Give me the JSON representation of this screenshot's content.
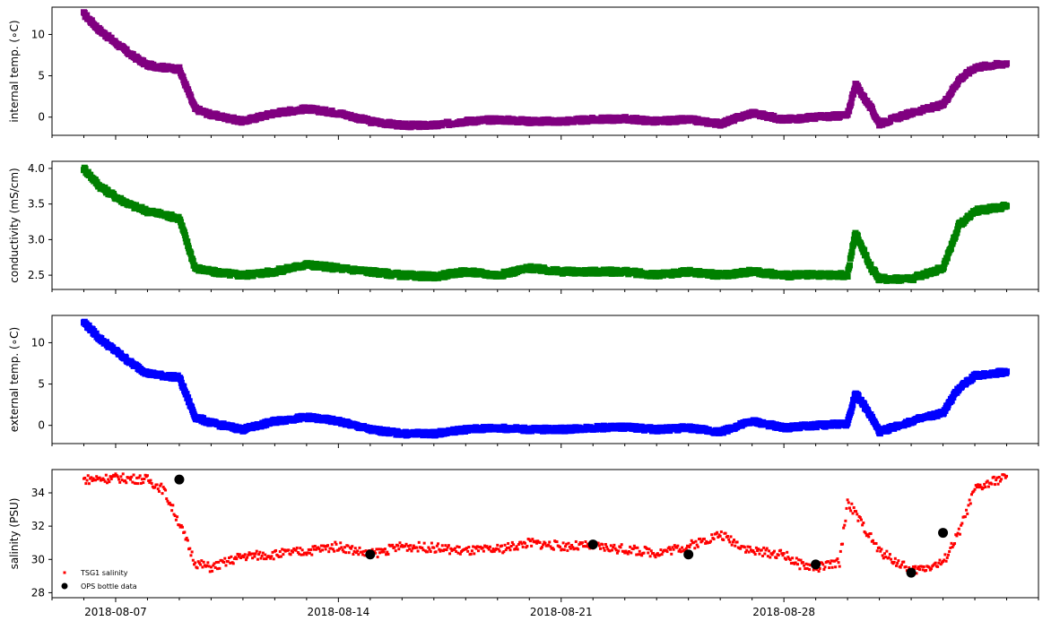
{
  "chart_data": [
    {
      "type": "scatter",
      "ylabel": "internal temp. (∘C)",
      "ylim": [
        -2.2,
        13.3
      ],
      "yticks": [
        0,
        5,
        10
      ],
      "ytick_labels": [
        "0",
        "5",
        "10"
      ],
      "series": [
        {
          "color": "#800080",
          "x": [
            "2018-08-06",
            "2018-08-06T12",
            "2018-08-07",
            "2018-08-07T12",
            "2018-08-08",
            "2018-08-08T12",
            "2018-08-09",
            "2018-08-09T12",
            "2018-08-10",
            "2018-08-11",
            "2018-08-12",
            "2018-08-13",
            "2018-08-14",
            "2018-08-15",
            "2018-08-16",
            "2018-08-17",
            "2018-08-18",
            "2018-08-19",
            "2018-08-20",
            "2018-08-21",
            "2018-08-22",
            "2018-08-23",
            "2018-08-24",
            "2018-08-25",
            "2018-08-26",
            "2018-08-27",
            "2018-08-28",
            "2018-08-29",
            "2018-08-30",
            "2018-08-30T06",
            "2018-08-30T18",
            "2018-08-31",
            "2018-09-01",
            "2018-09-02",
            "2018-09-02T12",
            "2018-09-03",
            "2018-09-04"
          ],
          "values": [
            12.5,
            10.5,
            9,
            7.5,
            6.3,
            6,
            5.8,
            1,
            0.3,
            -0.5,
            0.5,
            1,
            0.5,
            -0.5,
            -1,
            -1,
            -0.5,
            -0.3,
            -0.5,
            -0.5,
            -0.3,
            -0.2,
            -0.5,
            -0.3,
            -0.8,
            0.5,
            -0.3,
            0,
            0.2,
            4,
            1,
            -0.8,
            0.5,
            1.5,
            4.5,
            6,
            6.5
          ]
        }
      ]
    },
    {
      "type": "scatter",
      "ylabel": "conductivity (mS/cm)",
      "ylim": [
        2.3,
        4.1
      ],
      "yticks": [
        2.5,
        3.0,
        3.5,
        4.0
      ],
      "ytick_labels": [
        "2.5",
        "3.0",
        "3.5",
        "4.0"
      ],
      "series": [
        {
          "color": "#008000",
          "x": [
            "2018-08-06",
            "2018-08-06T12",
            "2018-08-07",
            "2018-08-07T12",
            "2018-08-08",
            "2018-08-08T12",
            "2018-08-09",
            "2018-08-09T12",
            "2018-08-10",
            "2018-08-11",
            "2018-08-12",
            "2018-08-13",
            "2018-08-14",
            "2018-08-15",
            "2018-08-16",
            "2018-08-17",
            "2018-08-18",
            "2018-08-19",
            "2018-08-20",
            "2018-08-21",
            "2018-08-22",
            "2018-08-23",
            "2018-08-24",
            "2018-08-25",
            "2018-08-26",
            "2018-08-27",
            "2018-08-28",
            "2018-08-29",
            "2018-08-30",
            "2018-08-30T06",
            "2018-08-30T18",
            "2018-08-31",
            "2018-09-01",
            "2018-09-02",
            "2018-09-02T12",
            "2018-09-03",
            "2018-09-04"
          ],
          "values": [
            4.0,
            3.75,
            3.6,
            3.48,
            3.4,
            3.35,
            3.3,
            2.6,
            2.55,
            2.5,
            2.55,
            2.65,
            2.6,
            2.55,
            2.5,
            2.48,
            2.55,
            2.5,
            2.6,
            2.55,
            2.55,
            2.55,
            2.5,
            2.55,
            2.5,
            2.55,
            2.5,
            2.5,
            2.5,
            3.1,
            2.6,
            2.45,
            2.45,
            2.6,
            3.2,
            3.4,
            3.47
          ]
        }
      ]
    },
    {
      "type": "scatter",
      "ylabel": "external temp. (∘C)",
      "ylim": [
        -2.2,
        13.3
      ],
      "yticks": [
        0,
        5,
        10
      ],
      "ytick_labels": [
        "0",
        "5",
        "10"
      ],
      "series": [
        {
          "color": "#0000ff",
          "x": [
            "2018-08-06",
            "2018-08-06T12",
            "2018-08-07",
            "2018-08-07T12",
            "2018-08-08",
            "2018-08-08T12",
            "2018-08-09",
            "2018-08-09T12",
            "2018-08-10",
            "2018-08-11",
            "2018-08-12",
            "2018-08-13",
            "2018-08-14",
            "2018-08-15",
            "2018-08-16",
            "2018-08-17",
            "2018-08-18",
            "2018-08-19",
            "2018-08-20",
            "2018-08-21",
            "2018-08-22",
            "2018-08-23",
            "2018-08-24",
            "2018-08-25",
            "2018-08-26",
            "2018-08-27",
            "2018-08-28",
            "2018-08-29",
            "2018-08-30",
            "2018-08-30T06",
            "2018-08-30T18",
            "2018-08-31",
            "2018-09-01",
            "2018-09-02",
            "2018-09-02T12",
            "2018-09-03",
            "2018-09-04"
          ],
          "values": [
            12.5,
            10.5,
            9,
            7.5,
            6.3,
            6,
            5.8,
            1,
            0.3,
            -0.5,
            0.5,
            1,
            0.5,
            -0.5,
            -1,
            -1,
            -0.5,
            -0.3,
            -0.5,
            -0.5,
            -0.3,
            -0.2,
            -0.5,
            -0.3,
            -0.8,
            0.5,
            -0.3,
            0,
            0.2,
            4,
            1,
            -0.8,
            0.5,
            1.5,
            4.5,
            6,
            6.5
          ]
        }
      ]
    },
    {
      "type": "scatter",
      "ylabel": "salinity (PSU)",
      "ylim": [
        27.7,
        35.4
      ],
      "yticks": [
        28,
        30,
        32,
        34
      ],
      "ytick_labels": [
        "28",
        "30",
        "32",
        "34"
      ],
      "xlim": [
        "2018-08-05",
        "2018-09-05"
      ],
      "xticks": [
        "2018-08-07",
        "2018-08-14",
        "2018-08-21",
        "2018-08-28"
      ],
      "xtick_labels": [
        "2018-08-07",
        "2018-08-14",
        "2018-08-21",
        "2018-08-28"
      ],
      "legend_position": "lower-left",
      "series": [
        {
          "name": "TSG1 salinity",
          "color": "#ff0000",
          "x": [
            "2018-08-06",
            "2018-08-07",
            "2018-08-08",
            "2018-08-08T12",
            "2018-08-09",
            "2018-08-09T12",
            "2018-08-10",
            "2018-08-11",
            "2018-08-12",
            "2018-08-13",
            "2018-08-14",
            "2018-08-15",
            "2018-08-16",
            "2018-08-17",
            "2018-08-18",
            "2018-08-19",
            "2018-08-20",
            "2018-08-21",
            "2018-08-22",
            "2018-08-23",
            "2018-08-24",
            "2018-08-25",
            "2018-08-26",
            "2018-08-27",
            "2018-08-28",
            "2018-08-28T12",
            "2018-08-29",
            "2018-08-29T18",
            "2018-08-30",
            "2018-08-31",
            "2018-09-01",
            "2018-09-02",
            "2018-09-02T12",
            "2018-09-03",
            "2018-09-04"
          ],
          "values": [
            34.8,
            34.9,
            34.8,
            34.2,
            32.2,
            29.8,
            29.5,
            30.2,
            30.3,
            30.5,
            30.8,
            30.3,
            30.8,
            30.7,
            30.5,
            30.6,
            31.0,
            30.8,
            30.8,
            30.6,
            30.4,
            30.8,
            31.5,
            30.5,
            30.3,
            29.7,
            29.5,
            29.8,
            33.5,
            30.5,
            29.3,
            29.8,
            31.6,
            34.2,
            35.0
          ]
        },
        {
          "name": "OPS bottle data",
          "color": "#000000",
          "x": [
            "2018-08-09",
            "2018-08-15",
            "2018-08-22",
            "2018-08-25",
            "2018-08-29",
            "2018-09-01",
            "2018-09-02"
          ],
          "values": [
            34.8,
            30.3,
            30.9,
            30.3,
            29.7,
            29.2,
            31.6
          ]
        }
      ]
    }
  ]
}
